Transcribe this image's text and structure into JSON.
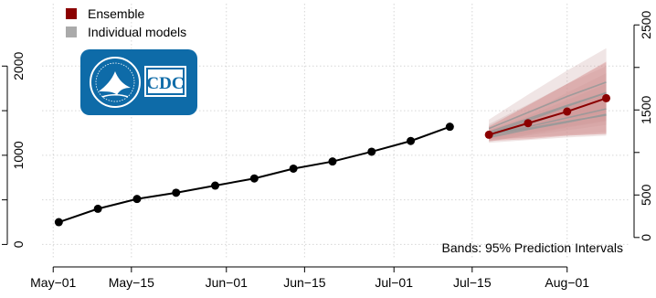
{
  "legend": {
    "items": [
      {
        "label": "Ensemble",
        "color": "#8b0000"
      },
      {
        "label": "Individual models",
        "color": "#aaaaaa"
      }
    ]
  },
  "logo": {
    "text": "CDC",
    "color": "#0e6ba8"
  },
  "note": "Bands: 95% Prediction Intervals",
  "chart_data": {
    "type": "line",
    "x_type": "date",
    "xlim": [
      "2020-04-29",
      "2020-08-12"
    ],
    "x_ticks": [
      {
        "date": "2020-05-01",
        "label": "May−01"
      },
      {
        "date": "2020-05-15",
        "label": "May−15"
      },
      {
        "date": "2020-06-01",
        "label": "Jun−01"
      },
      {
        "date": "2020-06-15",
        "label": "Jun−15"
      },
      {
        "date": "2020-07-01",
        "label": "Jul−01"
      },
      {
        "date": "2020-07-15",
        "label": "Jul−15"
      },
      {
        "date": "2020-08-01",
        "label": "Aug−01"
      }
    ],
    "y_left": {
      "ticks": [
        0,
        1000,
        2000
      ],
      "minor_ticks": [
        500,
        1500
      ],
      "ylim": [
        -170,
        2700
      ]
    },
    "y_right": {
      "ticks": [
        0,
        500,
        1500,
        2500
      ],
      "minor_ticks": [
        1000,
        2000
      ],
      "ylim": [
        -260,
        2750
      ]
    },
    "grid": true,
    "legend_position": "top-left",
    "observed": {
      "color": "#000000",
      "points": [
        {
          "x": "2020-05-02",
          "y": 250
        },
        {
          "x": "2020-05-09",
          "y": 400
        },
        {
          "x": "2020-05-16",
          "y": 510
        },
        {
          "x": "2020-05-23",
          "y": 580
        },
        {
          "x": "2020-05-30",
          "y": 660
        },
        {
          "x": "2020-06-06",
          "y": 740
        },
        {
          "x": "2020-06-13",
          "y": 850
        },
        {
          "x": "2020-06-20",
          "y": 930
        },
        {
          "x": "2020-06-27",
          "y": 1040
        },
        {
          "x": "2020-07-04",
          "y": 1160
        },
        {
          "x": "2020-07-11",
          "y": 1320
        }
      ]
    },
    "ensemble": {
      "name": "Ensemble",
      "color": "#8b0000",
      "band_color": "#d98888",
      "points": [
        {
          "x": "2020-07-18",
          "y": 1230,
          "lo": 1160,
          "hi": 1320
        },
        {
          "x": "2020-07-25",
          "y": 1360,
          "lo": 1180,
          "hi": 1560
        },
        {
          "x": "2020-08-01",
          "y": 1490,
          "lo": 1220,
          "hi": 1800
        },
        {
          "x": "2020-08-08",
          "y": 1640,
          "lo": 1240,
          "hi": 2050
        }
      ]
    },
    "individual_models": {
      "name": "Individual models",
      "color": "#999999",
      "band_color": "#c8a0a0",
      "x": [
        "2020-07-18",
        "2020-07-25",
        "2020-08-01",
        "2020-08-08"
      ],
      "series": [
        {
          "values": [
            1240,
            1390,
            1550,
            1700
          ],
          "lo": [
            1150,
            1230,
            1310,
            1380
          ],
          "hi": [
            1330,
            1560,
            1800,
            2040
          ]
        },
        {
          "values": [
            1220,
            1320,
            1420,
            1520
          ],
          "lo": [
            1170,
            1200,
            1230,
            1260
          ],
          "hi": [
            1280,
            1440,
            1620,
            1800
          ]
        },
        {
          "values": [
            1300,
            1480,
            1660,
            1820
          ],
          "lo": [
            1200,
            1300,
            1400,
            1480
          ],
          "hi": [
            1400,
            1680,
            1950,
            2200
          ]
        },
        {
          "values": [
            1200,
            1290,
            1370,
            1460
          ],
          "lo": [
            1140,
            1170,
            1200,
            1220
          ],
          "hi": [
            1260,
            1410,
            1560,
            1720
          ]
        },
        {
          "values": [
            1260,
            1410,
            1560,
            1700
          ],
          "lo": [
            1180,
            1250,
            1320,
            1390
          ],
          "hi": [
            1350,
            1570,
            1800,
            2000
          ]
        },
        {
          "values": [
            1210,
            1350,
            1490,
            1640
          ],
          "lo": [
            1160,
            1220,
            1280,
            1340
          ],
          "hi": [
            1270,
            1480,
            1700,
            1920
          ]
        },
        {
          "values": [
            1230,
            1300,
            1380,
            1450
          ],
          "lo": [
            1180,
            1200,
            1220,
            1240
          ],
          "hi": [
            1290,
            1400,
            1540,
            1680
          ]
        }
      ]
    }
  }
}
